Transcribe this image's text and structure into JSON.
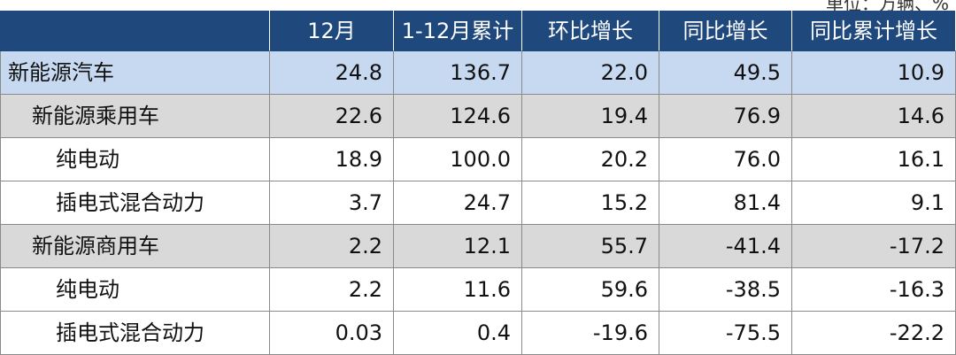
{
  "unit_note": "单位：万辆、%",
  "table": {
    "header": [
      "12月",
      "1-12月累计",
      "环比增长",
      "同比增长",
      "同比累计增长"
    ],
    "rows": [
      [
        "新能源汽车",
        "24.8",
        "136.7",
        "22.0",
        "49.5",
        "10.9"
      ],
      [
        "新能源乘用车",
        "22.6",
        "124.6",
        "19.4",
        "76.9",
        "14.6"
      ],
      [
        "纯电动",
        "18.9",
        "100.0",
        "20.2",
        "76.0",
        "16.1"
      ],
      [
        "插电式混合动力",
        "3.7",
        "24.7",
        "15.2",
        "81.4",
        "9.1"
      ],
      [
        "新能源商用车",
        "2.2",
        "12.1",
        "55.7",
        "-41.4",
        "-17.2"
      ],
      [
        "纯电动",
        "2.2",
        "11.6",
        "59.6",
        "-38.5",
        "-16.3"
      ],
      [
        "插电式混合动力",
        "0.03",
        "0.4",
        "-19.6",
        "-75.5",
        "-22.2"
      ]
    ]
  }
}
